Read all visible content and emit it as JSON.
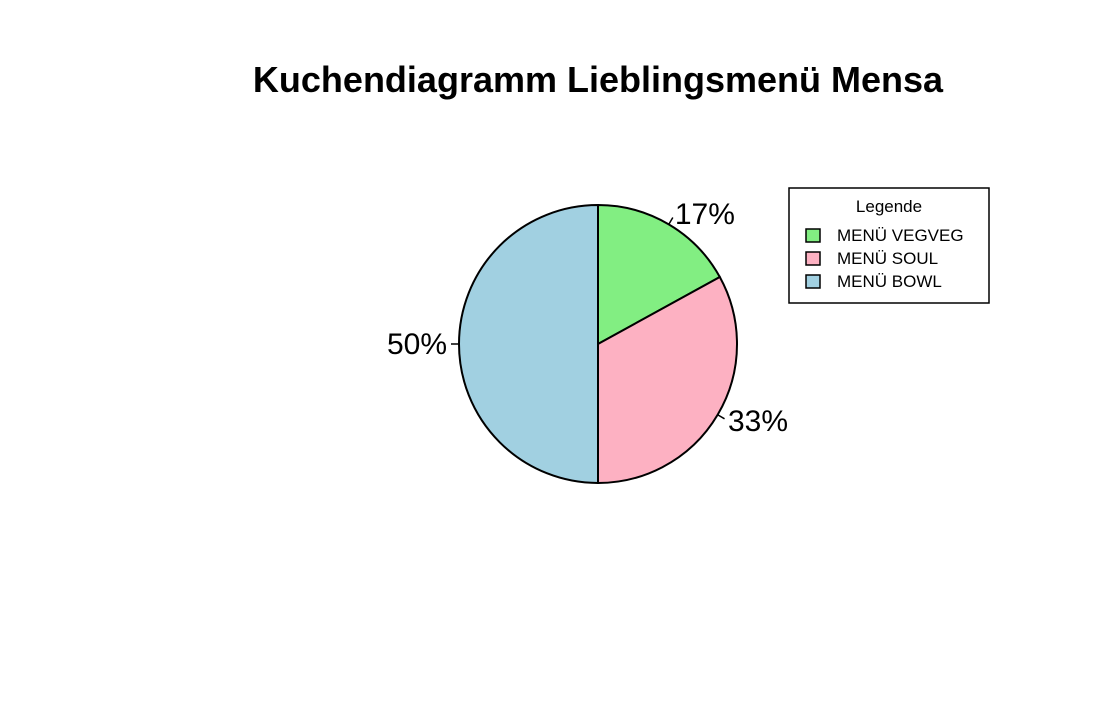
{
  "chart_data": {
    "type": "pie",
    "title": "Kuchendiagramm Lieblingsmenü Mensa",
    "slices": [
      {
        "name": "MENÜ VEGVEG",
        "value": 17,
        "label": "17%",
        "color": "#82ee82"
      },
      {
        "name": "MENÜ SOUL",
        "value": 33,
        "label": "33%",
        "color": "#fdb1c2"
      },
      {
        "name": "MENÜ BOWL",
        "value": 50,
        "label": "50%",
        "color": "#a1d0e1"
      }
    ],
    "legend": {
      "title": "Legende",
      "placement": "top-right"
    },
    "start": "12 o'clock",
    "direction": "clockwise"
  }
}
